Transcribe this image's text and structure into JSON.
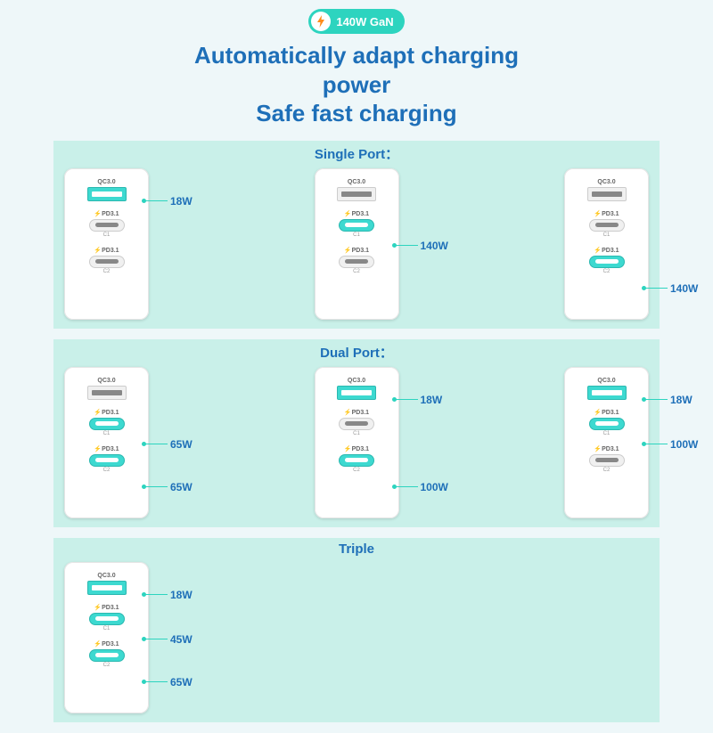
{
  "colors": {
    "page_bg": "#eef7f9",
    "section_bg": "#c9f0e9",
    "title_color": "#1e6fb8",
    "badge_bg": "#2dd4bf",
    "active_port": "#3dd9d0",
    "callout_line": "#2dd4bf",
    "charger_bg": "#ffffff"
  },
  "badge": {
    "text": "140W GaN"
  },
  "title": {
    "line1": "Automatically adapt charging",
    "line2": "power",
    "line3": "Safe fast charging"
  },
  "port_labels": {
    "usb_a": "QC3.0",
    "usb_c": "⚡PD3.1",
    "c1_sub": "C1",
    "c2_sub": "C2"
  },
  "sections": [
    {
      "title": "Single Port：",
      "chargers": [
        {
          "active": [
            "a"
          ],
          "callouts": [
            {
              "port": "a",
              "w": "18W"
            }
          ]
        },
        {
          "active": [
            "c1"
          ],
          "callouts": [
            {
              "port": "c1",
              "w": "140W"
            }
          ]
        },
        {
          "active": [
            "c2"
          ],
          "callouts": [
            {
              "port": "c2",
              "w": "140W"
            }
          ]
        }
      ]
    },
    {
      "title": "Dual Port：",
      "chargers": [
        {
          "active": [
            "c1",
            "c2"
          ],
          "callouts": [
            {
              "port": "c1",
              "w": "65W"
            },
            {
              "port": "c2",
              "w": "65W"
            }
          ]
        },
        {
          "active": [
            "a",
            "c2"
          ],
          "callouts": [
            {
              "port": "a",
              "w": "18W"
            },
            {
              "port": "c2",
              "w": "100W"
            }
          ]
        },
        {
          "active": [
            "a",
            "c1"
          ],
          "callouts": [
            {
              "port": "a",
              "w": "18W"
            },
            {
              "port": "c1",
              "w": "100W"
            }
          ]
        }
      ]
    },
    {
      "title": "Triple",
      "chargers": [
        {
          "active": [
            "a",
            "c1",
            "c2"
          ],
          "callouts": [
            {
              "port": "a",
              "w": "18W"
            },
            {
              "port": "c1",
              "w": "45W"
            },
            {
              "port": "c2",
              "w": "65W"
            }
          ]
        }
      ]
    }
  ],
  "port_y_offsets": {
    "a": 30,
    "c1": 80,
    "c2": 128
  }
}
